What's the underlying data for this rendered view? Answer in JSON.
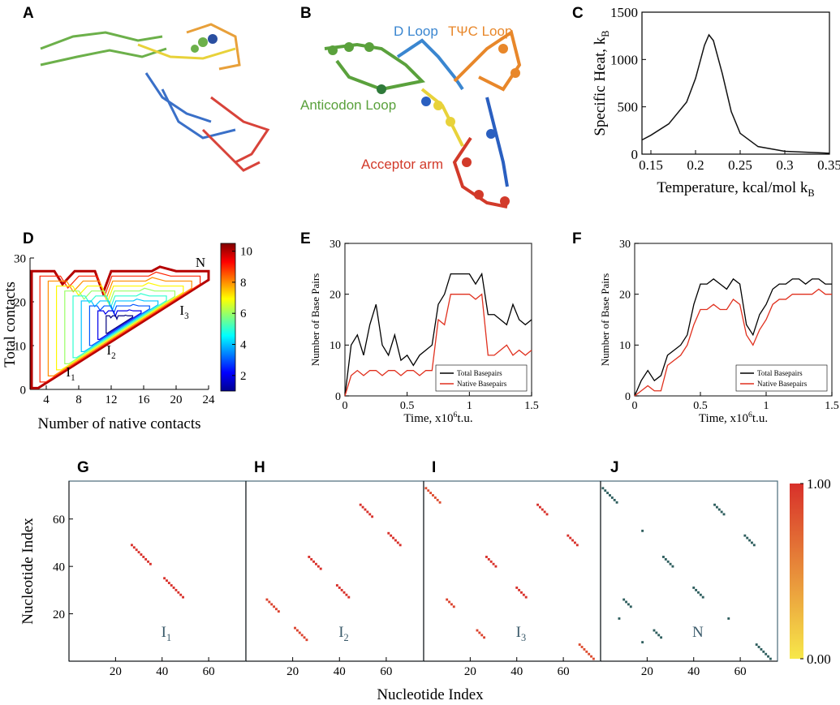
{
  "structure_panels": [
    {
      "panel": "A"
    },
    {
      "panel": "B",
      "labels": [
        {
          "text": "D Loop",
          "color": "#3a86d0"
        },
        {
          "text": "TΨC Loop",
          "color": "#e8872a"
        },
        {
          "text": "Anticodon Loop",
          "color": "#5aa13c"
        },
        {
          "text": "Acceptor arm",
          "color": "#d23a2a"
        }
      ]
    }
  ],
  "chart_data": [
    {
      "type": "line",
      "panel": "C",
      "xlabel": "Temperature, kcal/mol k",
      "xlabel_sub": "B",
      "ylabel": "Specific Heat, k",
      "ylabel_sub": "B",
      "xlim": [
        0.14,
        0.35
      ],
      "ylim": [
        0,
        1500
      ],
      "xticks": [
        0.15,
        0.2,
        0.25,
        0.3,
        0.35
      ],
      "yticks": [
        0,
        500,
        1000,
        1500
      ],
      "x": [
        0.14,
        0.15,
        0.17,
        0.19,
        0.2,
        0.21,
        0.215,
        0.22,
        0.23,
        0.24,
        0.25,
        0.27,
        0.3,
        0.35
      ],
      "series": [
        {
          "color": "#111111",
          "values": [
            150,
            200,
            320,
            550,
            800,
            1150,
            1260,
            1200,
            850,
            450,
            220,
            80,
            30,
            10
          ]
        }
      ]
    },
    {
      "type": "contour",
      "panel": "D",
      "xlabel": "Number of native contacts",
      "ylabel": "Total contacts",
      "xlim": [
        2,
        24
      ],
      "ylim": [
        0,
        30
      ],
      "xticks": [
        4,
        8,
        12,
        16,
        20,
        24
      ],
      "yticks": [
        0,
        10,
        20,
        30
      ],
      "levels": [
        1,
        2,
        3,
        4,
        5,
        6,
        7,
        8,
        9,
        10
      ],
      "colorbar": {
        "lim": [
          1,
          10.5
        ],
        "ticks": [
          2,
          4,
          6,
          8,
          10
        ]
      },
      "annotations": [
        {
          "text": "N",
          "x": 23,
          "y": 28
        },
        {
          "text": "I",
          "sub": "3",
          "x": 21,
          "y": 17
        },
        {
          "text": "I",
          "sub": "2",
          "x": 12,
          "y": 8
        },
        {
          "text": "I",
          "sub": "1",
          "x": 7,
          "y": 3
        }
      ]
    },
    {
      "type": "line",
      "panel": "E",
      "xlabel": "Time, x10",
      "xlabel_sup": "6",
      "xlabel_tail": "t.u.",
      "ylabel": "Number of Base Pairs",
      "xlim": [
        0,
        1.5
      ],
      "ylim": [
        0,
        30
      ],
      "xticks": [
        0,
        0.5,
        1,
        1.5
      ],
      "yticks": [
        0,
        10,
        20,
        30
      ],
      "x": [
        0,
        0.05,
        0.1,
        0.15,
        0.2,
        0.25,
        0.3,
        0.35,
        0.4,
        0.45,
        0.5,
        0.55,
        0.6,
        0.65,
        0.7,
        0.75,
        0.8,
        0.85,
        0.9,
        0.95,
        1,
        1.05,
        1.1,
        1.15,
        1.2,
        1.25,
        1.3,
        1.35,
        1.4,
        1.45,
        1.5
      ],
      "series": [
        {
          "name": "Total Basepairs",
          "color": "#000000",
          "values": [
            0,
            10,
            12,
            8,
            14,
            18,
            10,
            8,
            12,
            7,
            8,
            6,
            8,
            9,
            10,
            18,
            20,
            24,
            24,
            24,
            24,
            22,
            24,
            16,
            16,
            15,
            14,
            18,
            15,
            14,
            15
          ]
        },
        {
          "name": "Native Basepairs",
          "color": "#e0301e",
          "values": [
            0,
            4,
            5,
            4,
            5,
            5,
            4,
            5,
            5,
            4,
            5,
            5,
            4,
            5,
            5,
            15,
            14,
            20,
            20,
            20,
            20,
            19,
            20,
            8,
            8,
            9,
            10,
            8,
            9,
            8,
            9
          ]
        }
      ]
    },
    {
      "type": "line",
      "panel": "F",
      "xlabel": "Time, x10",
      "xlabel_sup": "6",
      "xlabel_tail": "t.u.",
      "ylabel": "Number of Base Pairs",
      "xlim": [
        0,
        1.5
      ],
      "ylim": [
        0,
        30
      ],
      "xticks": [
        0,
        0.5,
        1,
        1.5
      ],
      "yticks": [
        0,
        10,
        20,
        30
      ],
      "x": [
        0,
        0.05,
        0.1,
        0.15,
        0.2,
        0.25,
        0.3,
        0.35,
        0.4,
        0.45,
        0.5,
        0.55,
        0.6,
        0.65,
        0.7,
        0.75,
        0.8,
        0.85,
        0.9,
        0.95,
        1,
        1.05,
        1.1,
        1.15,
        1.2,
        1.25,
        1.3,
        1.35,
        1.4,
        1.45,
        1.5
      ],
      "series": [
        {
          "name": "Total Basepairs",
          "color": "#000000",
          "values": [
            0,
            3,
            5,
            3,
            4,
            8,
            9,
            10,
            12,
            18,
            22,
            22,
            23,
            22,
            21,
            23,
            22,
            14,
            12,
            16,
            18,
            21,
            22,
            22,
            23,
            23,
            22,
            23,
            23,
            22,
            22
          ]
        },
        {
          "name": "Native Basepairs",
          "color": "#e0301e",
          "values": [
            0,
            1,
            2,
            1,
            1,
            6,
            7,
            8,
            10,
            14,
            17,
            17,
            18,
            17,
            17,
            19,
            18,
            12,
            10,
            13,
            15,
            18,
            19,
            19,
            20,
            20,
            20,
            20,
            21,
            20,
            20
          ]
        }
      ]
    },
    {
      "type": "heatmap",
      "panel": "G",
      "annotation": {
        "text": "I",
        "sub": "1"
      },
      "xlim": [
        0,
        76
      ],
      "ylim": [
        0,
        76
      ],
      "xticks": [
        20,
        40,
        60
      ],
      "yticks": [
        20,
        40,
        60
      ],
      "stems": [
        {
          "i": 27,
          "j": 49,
          "length": 9,
          "value": 1
        }
      ],
      "regions": [
        {
          "x": [
            2,
            28
          ],
          "y": [
            2,
            28
          ],
          "value": 0.1
        },
        {
          "x": [
            50,
            75
          ],
          "y": [
            50,
            75
          ],
          "value": 0.1
        },
        {
          "x": [
            2,
            12
          ],
          "y": [
            55,
            75
          ],
          "value": 0.05
        },
        {
          "x": [
            55,
            75
          ],
          "y": [
            2,
            12
          ],
          "value": 0.05
        }
      ]
    },
    {
      "type": "heatmap",
      "panel": "H",
      "annotation": {
        "text": "I",
        "sub": "2"
      },
      "xlim": [
        0,
        76
      ],
      "ylim": [
        0,
        76
      ],
      "xticks": [
        20,
        40,
        60
      ],
      "stems": [
        {
          "i": 9,
          "j": 26,
          "length": 6,
          "value": 0.9
        },
        {
          "i": 27,
          "j": 44,
          "length": 6,
          "value": 1
        },
        {
          "i": 49,
          "j": 66,
          "length": 6,
          "value": 1
        }
      ],
      "regions": [
        {
          "x": [
            2,
            12
          ],
          "y": [
            2,
            20
          ],
          "value": 0.08
        },
        {
          "x": [
            40,
            48
          ],
          "y": [
            40,
            48
          ],
          "value": 0.08
        },
        {
          "x": [
            2,
            8
          ],
          "y": [
            66,
            75
          ],
          "value": 0.05
        }
      ]
    },
    {
      "type": "heatmap",
      "panel": "I",
      "annotation": {
        "text": "I",
        "sub": "3"
      },
      "xlim": [
        0,
        76
      ],
      "ylim": [
        0,
        76
      ],
      "xticks": [
        20,
        40,
        60
      ],
      "stems": [
        {
          "i": 1,
          "j": 73,
          "length": 7,
          "value": 0.85
        },
        {
          "i": 10,
          "j": 26,
          "length": 4,
          "value": 0.9
        },
        {
          "i": 27,
          "j": 44,
          "length": 5,
          "value": 1
        },
        {
          "i": 49,
          "j": 66,
          "length": 5,
          "value": 1
        }
      ],
      "regions": [
        {
          "x": [
            2,
            10
          ],
          "y": [
            40,
            50
          ],
          "value": 0.08
        },
        {
          "x": [
            42,
            50
          ],
          "y": [
            2,
            10
          ],
          "value": 0.08
        },
        {
          "x": [
            10,
            20
          ],
          "y": [
            2,
            12
          ],
          "value": 0.05
        }
      ]
    },
    {
      "type": "heatmap",
      "panel": "J",
      "annotation": {
        "text": "N"
      },
      "color": "#2e5e5e",
      "xlim": [
        0,
        76
      ],
      "ylim": [
        0,
        76
      ],
      "xticks": [
        20,
        40,
        60
      ],
      "stems": [
        {
          "i": 1,
          "j": 73,
          "length": 7,
          "value": 1
        },
        {
          "i": 10,
          "j": 26,
          "length": 4,
          "value": 1
        },
        {
          "i": 27,
          "j": 44,
          "length": 5,
          "value": 1
        },
        {
          "i": 49,
          "j": 66,
          "length": 5,
          "value": 1
        },
        {
          "i": 8,
          "j": 18,
          "length": 1,
          "value": 1
        },
        {
          "i": 18,
          "j": 55,
          "length": 1,
          "value": 1
        }
      ],
      "regions": []
    }
  ],
  "contact_maps": {
    "xlabel": "Nucleotide Index",
    "ylabel": "Nucleotide Index",
    "colorbar": {
      "lim": [
        0,
        1
      ],
      "colors": [
        "#f7e84a",
        "#d8302a"
      ],
      "ticks": [
        {
          "value": 1,
          "label": "1.00"
        },
        {
          "value": 0,
          "label": "0.00"
        }
      ]
    }
  }
}
